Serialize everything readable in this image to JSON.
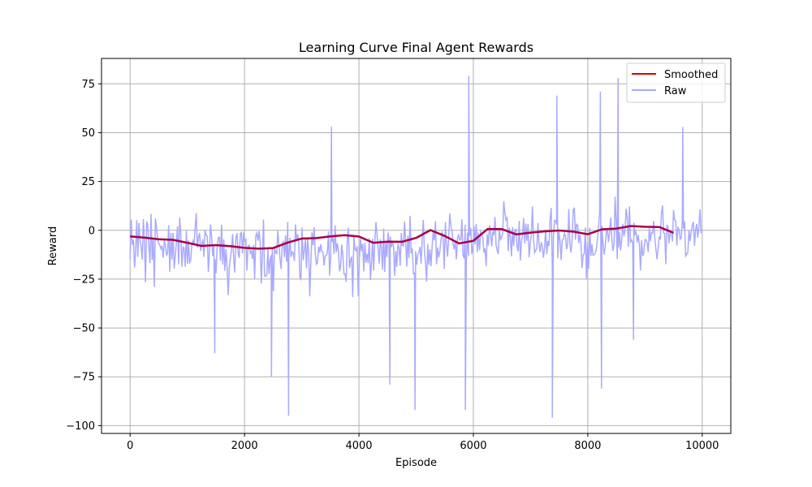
{
  "chart_data": {
    "type": "line",
    "title": "Learning Curve Final Agent Rewards",
    "xlabel": "Episode",
    "ylabel": "Reward",
    "xlim": [
      -500,
      10500
    ],
    "ylim": [
      -104,
      88
    ],
    "xticks": [
      0,
      2000,
      4000,
      6000,
      8000,
      10000
    ],
    "yticks": [
      -100,
      -75,
      -50,
      -25,
      0,
      25,
      50,
      75
    ],
    "xtick_labels": [
      "0",
      "2000",
      "4000",
      "6000",
      "8000",
      "10000"
    ],
    "ytick_labels": [
      "−100",
      "−75",
      "−50",
      "−25",
      "0",
      "25",
      "50",
      "75"
    ],
    "grid": true,
    "legend_position": "top-right",
    "series": [
      {
        "name": "Smoothed",
        "color": "#e00000",
        "display_color": "#a80044",
        "x": [
          0,
          250,
          500,
          750,
          1000,
          1250,
          1500,
          1750,
          2000,
          2250,
          2500,
          2750,
          3000,
          3250,
          3500,
          3750,
          4000,
          4250,
          4500,
          4750,
          5000,
          5250,
          5500,
          5750,
          6000,
          6250,
          6500,
          6750,
          7000,
          7250,
          7500,
          7750,
          8000,
          8250,
          8500,
          8750,
          9000,
          9250,
          9500
        ],
        "values": [
          -3.1,
          -3.7,
          -4.6,
          -4.9,
          -6.4,
          -8.0,
          -7.6,
          -8.1,
          -9.0,
          -9.4,
          -9.1,
          -6.3,
          -4.2,
          -4.0,
          -3.1,
          -2.5,
          -3.2,
          -6.4,
          -5.8,
          -5.9,
          -3.9,
          0.1,
          -2.9,
          -6.7,
          -5.4,
          0.7,
          0.6,
          -2.1,
          -1.2,
          -0.5,
          -0.1,
          -0.7,
          -2.0,
          0.5,
          0.9,
          2.2,
          1.8,
          1.7,
          -1.3
        ]
      },
      {
        "name": "Raw",
        "color": "#aaaaff",
        "x_start": 0,
        "x_end": 10000,
        "sampled_every": 20,
        "values": [
          -14.8,
          5.5,
          -7.3,
          -4.9,
          -19.1,
          -11.3,
          5.2,
          -13.6,
          3.9,
          -5.1,
          -8.5,
          -15.0,
          5.8,
          -5.7,
          -26.6,
          4.5,
          2.9,
          -8.0,
          -16.9,
          8.4,
          -15.1,
          -4.5,
          -29.0,
          6.1,
          1.5,
          -4.7,
          -6.7,
          -7.7,
          -9.5,
          -7.9,
          -14.0,
          -5.3,
          -7.2,
          -13.0,
          -11.6,
          2.6,
          -21.2,
          -1.3,
          -15.0,
          -1.3,
          -19.7,
          -13.0,
          -6.0,
          2.0,
          -17.4,
          6.5,
          -2.6,
          -18.7,
          -8.6,
          -9.0,
          -18.6,
          -0.3,
          -17.2,
          -5.1,
          -17.0,
          -15.1,
          -7.5,
          -5.4,
          -7.5,
          1.4,
          8.8,
          -8.8,
          -3.7,
          -1.3,
          -10.5,
          -7.3,
          -4.7,
          -13.6,
          -0.1,
          -2.3,
          -3.2,
          -21.3,
          -10.3,
          3.0,
          -3.7,
          -13.2,
          -7.4,
          -14.7,
          -21.9,
          -8.0,
          -3.9,
          -3.5,
          -15.6,
          2.9,
          -17.6,
          -4.6,
          -20.7,
          -9.6,
          -18.8,
          -33.2,
          -19.1,
          -14.3,
          -9.8,
          -1.9,
          -14.8,
          -21.7,
          -4.1,
          -1.4,
          -11.9,
          -14.1,
          -1.7,
          -1.1,
          -11.8,
          -1.0,
          -5.6,
          -4.7,
          -20.6,
          -8.1,
          -7.6,
          -11.6,
          -10.5,
          -14.7,
          -7.4,
          -25.0,
          -2.8,
          -1.4,
          -5.3,
          -0.4,
          -6.3,
          -27.3,
          -12.7,
          5.5,
          -23.3,
          -23.6,
          -22.6,
          -9.7,
          -22.4,
          -15.2,
          -12.7,
          -9.5,
          -31.2,
          -8.9,
          -11.0,
          -12.2,
          -0.3,
          -7.3,
          -14.4,
          -19.8,
          -7.7,
          -5.4,
          -13.7,
          -2.5,
          -16.0,
          4.3,
          -14.1,
          -3.8,
          -13.7,
          -11.0,
          -11.6,
          -15.7,
          3.0,
          -4.5,
          -2.2,
          -5.7,
          -24.0,
          -24.9,
          1.4,
          -15.3,
          -10.7,
          -4.5,
          -19.5,
          -4.5,
          -9.9,
          -33.8,
          -15.9,
          -0.9,
          -7.6,
          1.5,
          -11.6,
          -17.3,
          -16.7,
          -8.3,
          -11.4,
          -7.1,
          -10.7,
          -11.2,
          -18.0,
          -13.1,
          -13.0,
          -11.2,
          -0.7,
          -23.2,
          -13.9,
          -5.8,
          -3.6,
          -12.1,
          2.5,
          -11.3,
          -6.7,
          -10.9,
          -21.1,
          -18.2,
          -7.3,
          -12.5,
          -22.3,
          -22.3,
          -26.4,
          -4.5,
          1.3,
          -19.3,
          -15.5,
          -13.5,
          -34.1,
          -3.1,
          -9.8,
          -10.4,
          -8.2,
          -33.7,
          -14.8,
          -4.3,
          -10.7,
          -6.9,
          -21.0,
          -6.4,
          -16.6,
          -12.0,
          -16.8,
          -4.0,
          -25.4,
          -17.3,
          -4.3,
          -20.6,
          -5.8,
          4.2,
          -2.1,
          -9.3,
          -17.0,
          -4.6,
          -8.6,
          -20.2,
          0.9,
          -21.3,
          -5.5,
          -13.7,
          -1.1,
          -7.1,
          -3.2,
          -8.6,
          -6.0,
          -8.5,
          -23.3,
          -10.5,
          -18.7,
          -7.0,
          -9.1,
          -18.1,
          -1.4,
          -7.7,
          -8.1,
          4.5,
          -5.9,
          -18.6,
          -2.8,
          -14.2,
          7.4,
          -11.9,
          -9.3,
          -22.2,
          -21.9,
          -10.6,
          -17.6,
          -12.2,
          -11.4,
          -8.5,
          -17.2,
          -4.0,
          5.4,
          -10.6,
          -16.9,
          -26.2,
          -7.0,
          -17.8,
          -9.7,
          -18.4,
          -8.1,
          -0.6,
          -5.1,
          4.6,
          -17.4,
          -8.9,
          -14.0,
          -10.7,
          -5.3,
          -0.5,
          -4.3,
          -19.8,
          4.2,
          -6.8,
          -13.5,
          -4.5,
          8.6,
          2.3,
          -0.4,
          -7.0,
          -9.7,
          -5.4,
          -14.9,
          -4.0,
          -2.1,
          -5.1,
          -4.8,
          5.6,
          -12.8,
          -14.4,
          2.9,
          -15.6,
          -1.2,
          -13.2,
          -2.9,
          1.3,
          -12.3,
          -8.8,
          2.1,
          -7.2,
          3.3,
          -11.2,
          -1.1,
          -10.2,
          -0.7,
          -1.9,
          -3.6,
          -11.4,
          -9.3,
          -18.3,
          -2.0,
          -7.8,
          2.6,
          -1.2,
          -8.2,
          -0.7,
          -2.6,
          6.8,
          -7.5,
          -10.4,
          -12.1,
          1.2,
          -4.7,
          -3.7,
          -1.6,
          14.8,
          8.7,
          5.2,
          6.3,
          -10.6,
          1.4,
          -3.8,
          -13.3,
          1.7,
          -8.1,
          0.1,
          0.5,
          -8.5,
          -10.8,
          4.8,
          -15.5,
          -6.0,
          -2.8,
          6.3,
          -6.7,
          3.4,
          -5.4,
          3.3,
          -13.8,
          -7.0,
          -2.3,
          12.2,
          -4.8,
          -11.4,
          -10.2,
          -9.4,
          3.8,
          -7.6,
          -11.2,
          -6.1,
          -8.3,
          -14.0,
          -9.0,
          0.4,
          -12.1,
          -5.5,
          -8.1,
          5.4,
          11.5,
          -19.7,
          -3.5,
          5.1,
          5.1,
          2.9,
          -14.4,
          -0.8,
          -5.4,
          -15.2,
          -5.0,
          -4.6,
          -1.5,
          -2.8,
          -9.6,
          -7.0,
          10.9,
          -7.7,
          -11.4,
          -4.8,
          10.4,
          11.6,
          -4.8,
          3.1,
          2.6,
          -6.6,
          -2.2,
          -6.3,
          -19.2,
          -12.6,
          -12.0,
          1.5,
          -24.8,
          -5.9,
          -19.7,
          1.3,
          -13.1,
          -7.2,
          -12.8,
          -12.5,
          -11.7,
          -9.5,
          -4.3,
          2.2,
          9.4,
          -7.8,
          2.4,
          -6.6,
          -12.5,
          -8.6,
          -0.6,
          -0.2,
          -6.0,
          -0.6,
          6.5,
          -4.3,
          -10.5,
          -7.5,
          17.2,
          3.9,
          -14.7,
          -8.8,
          -1.0,
          -10.3,
          -4.8,
          3.3,
          -3.0,
          -0.1,
          11.1,
          6.2,
          -8.6,
          12.2,
          -5.9,
          -4.9,
          -6.7,
          4.0,
          -1.9,
          -0.8,
          -6.2,
          -2.3,
          -7.3,
          -20.5,
          -5.0,
          -13.1,
          -11.8,
          -4.8,
          -4.8,
          -6.4,
          -11.1,
          1.1,
          -5.6,
          -1.1,
          -1.5,
          4.8,
          -3.9,
          -9.7,
          -14.8,
          -9.3,
          -3.2,
          -4.6,
          8.2,
          12.7,
          -1.3,
          -1.6,
          -17.4,
          2.8,
          1.5,
          -6.6,
          -0.9,
          -0.7,
          -5.7,
          10.4,
          5.4,
          4.7,
          -7.8,
          1.4,
          0.4,
          -4.6,
          -3.7,
          4.9,
          0.9,
          4.5,
          -13.2,
          -12.2,
          -11.1,
          0.2,
          -5.6,
          -1.0,
          2.6,
          4.3,
          -8.0,
          0.4,
          3.3,
          -3.7,
          1.8,
          10.8,
          -1.2,
          -0.8
        ],
        "notable_spikes": [
          {
            "x": 2770,
            "y": -95
          },
          {
            "x": 3520,
            "y": 53
          },
          {
            "x": 4980,
            "y": -92
          },
          {
            "x": 5920,
            "y": 79
          },
          {
            "x": 5860,
            "y": -92
          },
          {
            "x": 7380,
            "y": -96
          },
          {
            "x": 7460,
            "y": 69
          },
          {
            "x": 8220,
            "y": 71
          },
          {
            "x": 8240,
            "y": -81
          },
          {
            "x": 8530,
            "y": 78
          },
          {
            "x": 8800,
            "y": -56
          },
          {
            "x": 9660,
            "y": 53
          },
          {
            "x": 4540,
            "y": -79
          },
          {
            "x": 1480,
            "y": -63
          },
          {
            "x": 2470,
            "y": -75
          }
        ]
      }
    ]
  }
}
